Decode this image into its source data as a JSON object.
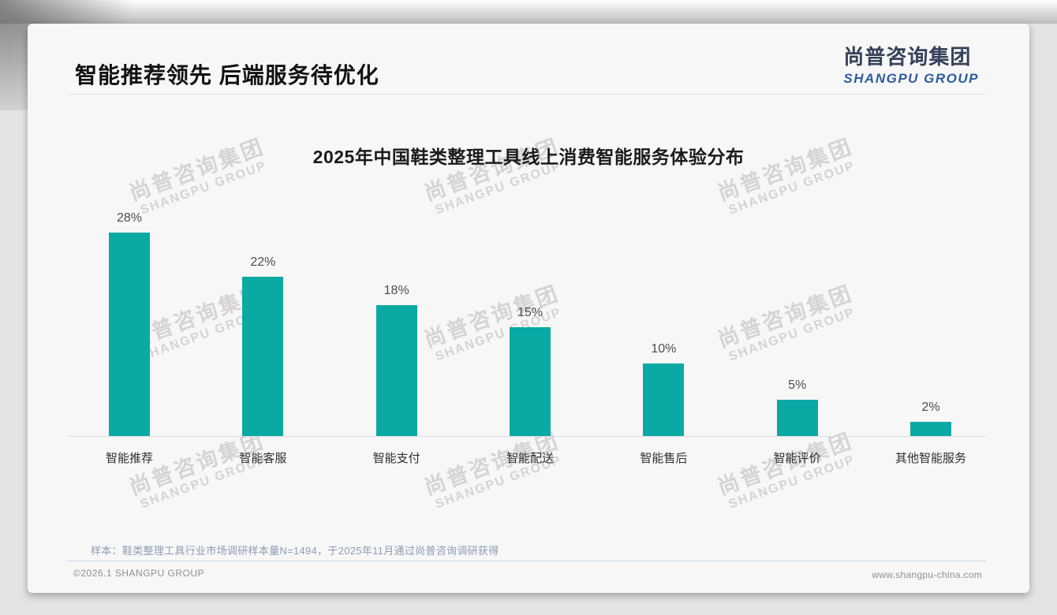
{
  "page": {
    "title": "智能推荐领先 后端服务待优化",
    "logo": {
      "cn": "尚普咨询集团",
      "en": "SHANGPU GROUP"
    },
    "watermark": {
      "cn": "尚普咨询集团",
      "en": "SHANGPU GROUP"
    },
    "sample_note": "样本：鞋类整理工具行业市场调研样本量N=1494，于2025年11月通过尚普咨询调研获得",
    "footer": {
      "copyright": "©2026.1 SHANGPU GROUP",
      "website": "www.shangpu-china.com"
    }
  },
  "chart_data": {
    "type": "bar",
    "title": "2025年中国鞋类整理工具线上消费智能服务体验分布",
    "categories": [
      "智能推荐",
      "智能客服",
      "智能支付",
      "智能配送",
      "智能售后",
      "智能评价",
      "其他智能服务"
    ],
    "values": [
      28,
      22,
      18,
      15,
      10,
      5,
      2
    ],
    "data_labels": [
      "28%",
      "22%",
      "18%",
      "15%",
      "10%",
      "5%",
      "2%"
    ],
    "unit": "%",
    "xlabel": "",
    "ylabel": "",
    "ylim": [
      0,
      30
    ],
    "grid": false,
    "legend": false,
    "bar_color": "#0aa9a3"
  }
}
